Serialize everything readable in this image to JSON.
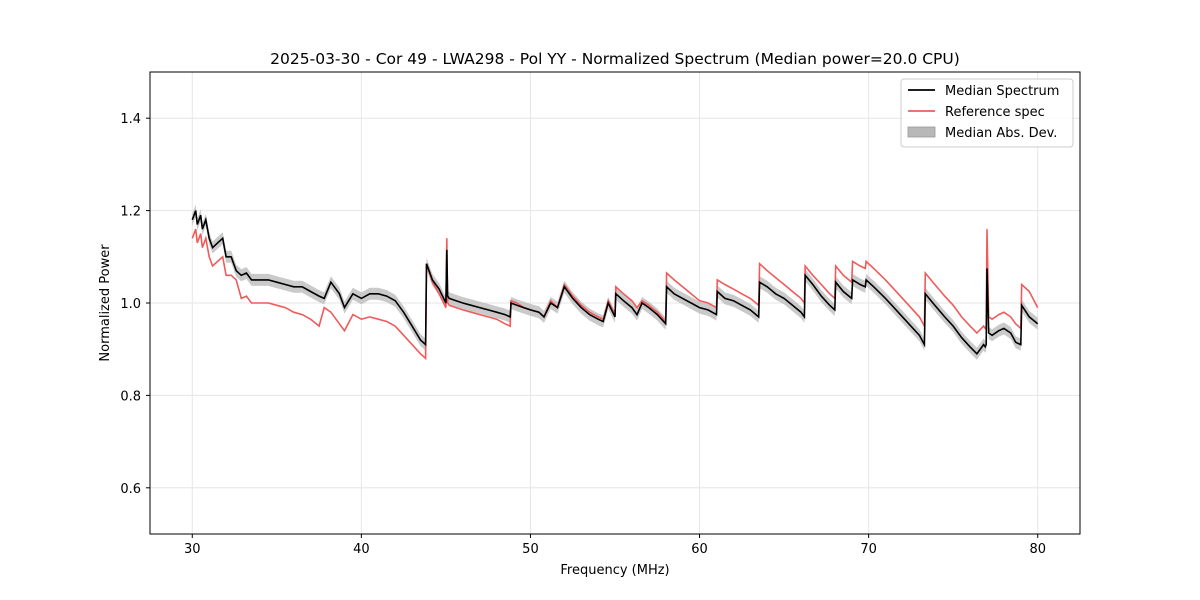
{
  "chart_data": {
    "type": "line",
    "title": "2025-03-30 - Cor 49 - LWA298 - Pol YY - Normalized Spectrum (Median power=20.0 CPU)",
    "xlabel": "Frequency (MHz)",
    "ylabel": "Normalized Power",
    "xlim": [
      27.5,
      82.5
    ],
    "ylim": [
      0.5,
      1.5
    ],
    "xticks": [
      30,
      40,
      50,
      60,
      70,
      80
    ],
    "yticks": [
      0.6,
      0.8,
      1.0,
      1.2,
      1.4
    ],
    "xtick_labels": [
      "30",
      "40",
      "50",
      "60",
      "70",
      "80"
    ],
    "ytick_labels": [
      "0.6",
      "0.8",
      "1.0",
      "1.2",
      "1.4"
    ],
    "grid": true,
    "legend_position": "top-right",
    "legend": [
      "Median Spectrum",
      "Reference spec",
      "Median Abs. Dev."
    ],
    "colors": {
      "median": "#000000",
      "reference": "#ef5b5b",
      "mad": "#b8b8b8",
      "grid": "#e6e6e6"
    },
    "mad_halfwidth": 0.013,
    "series": [
      {
        "name": "Median Spectrum",
        "x": [
          30.0,
          30.2,
          30.3,
          30.5,
          30.6,
          30.8,
          31.0,
          31.2,
          31.5,
          31.8,
          32.0,
          32.3,
          32.6,
          32.9,
          33.2,
          33.5,
          34.0,
          34.5,
          35.0,
          35.5,
          36.0,
          36.5,
          37.0,
          37.5,
          37.8,
          38.2,
          38.7,
          39.0,
          39.5,
          40.0,
          40.5,
          41.0,
          41.5,
          42.0,
          42.5,
          43.0,
          43.5,
          43.8,
          43.85,
          44.2,
          44.6,
          45.0,
          45.05,
          45.1,
          45.2,
          45.6,
          46.0,
          46.5,
          47.0,
          47.5,
          48.0,
          48.5,
          48.8,
          48.85,
          49.2,
          49.6,
          50.0,
          50.5,
          50.8,
          51.2,
          51.6,
          52.0,
          52.5,
          53.0,
          53.5,
          54.0,
          54.3,
          54.6,
          55.0,
          55.05,
          55.5,
          56.0,
          56.3,
          56.6,
          57.0,
          57.5,
          58.0,
          58.05,
          58.5,
          59.0,
          59.5,
          60.0,
          60.5,
          61.0,
          61.05,
          61.5,
          62.0,
          62.5,
          63.0,
          63.5,
          63.55,
          64.0,
          64.5,
          65.0,
          65.5,
          66.0,
          66.2,
          66.25,
          66.7,
          67.2,
          67.7,
          68.0,
          68.05,
          68.5,
          69.0,
          69.05,
          69.5,
          69.8,
          69.85,
          70.3,
          71.0,
          72.0,
          73.0,
          73.3,
          73.35,
          73.8,
          74.5,
          75.0,
          75.5,
          76.0,
          76.4,
          76.8,
          76.9,
          76.95,
          77.0,
          77.1,
          77.3,
          77.7,
          78.0,
          78.4,
          78.7,
          79.0,
          79.05,
          79.5,
          80.0
        ],
        "values": [
          1.18,
          1.2,
          1.17,
          1.19,
          1.16,
          1.18,
          1.14,
          1.12,
          1.13,
          1.14,
          1.1,
          1.1,
          1.07,
          1.06,
          1.065,
          1.05,
          1.05,
          1.05,
          1.045,
          1.04,
          1.035,
          1.035,
          1.025,
          1.015,
          1.01,
          1.045,
          1.02,
          0.99,
          1.02,
          1.01,
          1.02,
          1.02,
          1.015,
          1.005,
          0.98,
          0.95,
          0.92,
          0.91,
          1.085,
          1.05,
          1.03,
          1.0,
          1.115,
          1.015,
          1.01,
          1.005,
          1.0,
          0.995,
          0.99,
          0.985,
          0.98,
          0.975,
          0.97,
          1.0,
          0.995,
          0.99,
          0.985,
          0.98,
          0.97,
          1.0,
          0.99,
          1.035,
          1.01,
          0.99,
          0.975,
          0.965,
          0.96,
          1.0,
          0.97,
          1.02,
          1.005,
          0.99,
          0.975,
          1.0,
          0.99,
          0.975,
          0.955,
          1.035,
          1.02,
          1.01,
          1.0,
          0.99,
          0.985,
          0.975,
          1.025,
          1.01,
          1.005,
          0.995,
          0.985,
          0.97,
          1.045,
          1.035,
          1.02,
          1.01,
          0.995,
          0.98,
          0.97,
          1.06,
          1.04,
          1.015,
          0.995,
          0.985,
          1.045,
          1.025,
          1.01,
          1.05,
          1.04,
          1.035,
          1.05,
          1.035,
          1.01,
          0.97,
          0.93,
          0.91,
          1.02,
          1.0,
          0.97,
          0.95,
          0.925,
          0.905,
          0.89,
          0.91,
          0.905,
          0.91,
          1.075,
          0.935,
          0.93,
          0.94,
          0.945,
          0.935,
          0.915,
          0.91,
          0.995,
          0.97,
          0.955
        ]
      },
      {
        "name": "Reference spec",
        "x": [
          30.0,
          30.2,
          30.3,
          30.5,
          30.6,
          30.8,
          31.0,
          31.2,
          31.5,
          31.8,
          32.0,
          32.3,
          32.6,
          32.9,
          33.2,
          33.5,
          34.0,
          34.5,
          35.0,
          35.5,
          36.0,
          36.5,
          37.0,
          37.5,
          37.8,
          38.2,
          38.7,
          39.0,
          39.5,
          40.0,
          40.5,
          41.0,
          41.5,
          42.0,
          42.5,
          43.0,
          43.5,
          43.8,
          43.85,
          44.2,
          44.6,
          45.0,
          45.05,
          45.1,
          45.2,
          45.6,
          46.0,
          46.5,
          47.0,
          47.5,
          48.0,
          48.5,
          48.8,
          48.85,
          49.2,
          49.6,
          50.0,
          50.5,
          50.8,
          51.2,
          51.6,
          52.0,
          52.5,
          53.0,
          53.5,
          54.0,
          54.3,
          54.6,
          55.0,
          55.05,
          55.5,
          56.0,
          56.3,
          56.6,
          57.0,
          57.5,
          58.0,
          58.05,
          58.5,
          59.0,
          59.5,
          60.0,
          60.5,
          61.0,
          61.05,
          61.5,
          62.0,
          62.5,
          63.0,
          63.5,
          63.55,
          64.0,
          64.5,
          65.0,
          65.5,
          66.0,
          66.2,
          66.25,
          66.7,
          67.2,
          67.7,
          68.0,
          68.05,
          68.5,
          69.0,
          69.05,
          69.5,
          69.8,
          69.85,
          70.3,
          71.0,
          72.0,
          73.0,
          73.3,
          73.35,
          73.8,
          74.5,
          75.0,
          75.5,
          76.0,
          76.4,
          76.8,
          76.9,
          76.95,
          77.0,
          77.1,
          77.3,
          77.7,
          78.0,
          78.4,
          78.7,
          79.0,
          79.05,
          79.5,
          80.0
        ],
        "values": [
          1.14,
          1.16,
          1.13,
          1.15,
          1.12,
          1.14,
          1.1,
          1.08,
          1.09,
          1.1,
          1.06,
          1.06,
          1.05,
          1.01,
          1.015,
          1.0,
          1.0,
          1.0,
          0.995,
          0.99,
          0.98,
          0.975,
          0.965,
          0.95,
          0.99,
          0.98,
          0.955,
          0.94,
          0.975,
          0.965,
          0.97,
          0.965,
          0.96,
          0.95,
          0.93,
          0.91,
          0.89,
          0.88,
          1.085,
          1.045,
          1.02,
          0.99,
          1.14,
          1.0,
          0.995,
          0.99,
          0.985,
          0.98,
          0.975,
          0.97,
          0.965,
          0.955,
          0.95,
          1.005,
          1.0,
          0.99,
          0.985,
          0.98,
          0.97,
          1.005,
          0.99,
          1.04,
          1.015,
          0.995,
          0.98,
          0.97,
          0.965,
          1.005,
          0.975,
          1.035,
          1.02,
          1.005,
          0.99,
          1.005,
          0.995,
          0.98,
          0.96,
          1.065,
          1.05,
          1.035,
          1.02,
          1.005,
          1.0,
          0.99,
          1.05,
          1.04,
          1.03,
          1.02,
          1.01,
          0.995,
          1.085,
          1.07,
          1.055,
          1.04,
          1.025,
          1.01,
          1.0,
          1.08,
          1.06,
          1.04,
          1.02,
          1.01,
          1.08,
          1.06,
          1.045,
          1.09,
          1.08,
          1.075,
          1.09,
          1.075,
          1.05,
          1.01,
          0.97,
          0.95,
          1.065,
          1.045,
          1.015,
          0.995,
          0.97,
          0.95,
          0.935,
          0.95,
          0.945,
          0.95,
          1.16,
          0.97,
          0.965,
          0.975,
          0.98,
          0.97,
          0.955,
          0.945,
          1.04,
          1.025,
          0.99
        ]
      }
    ]
  }
}
